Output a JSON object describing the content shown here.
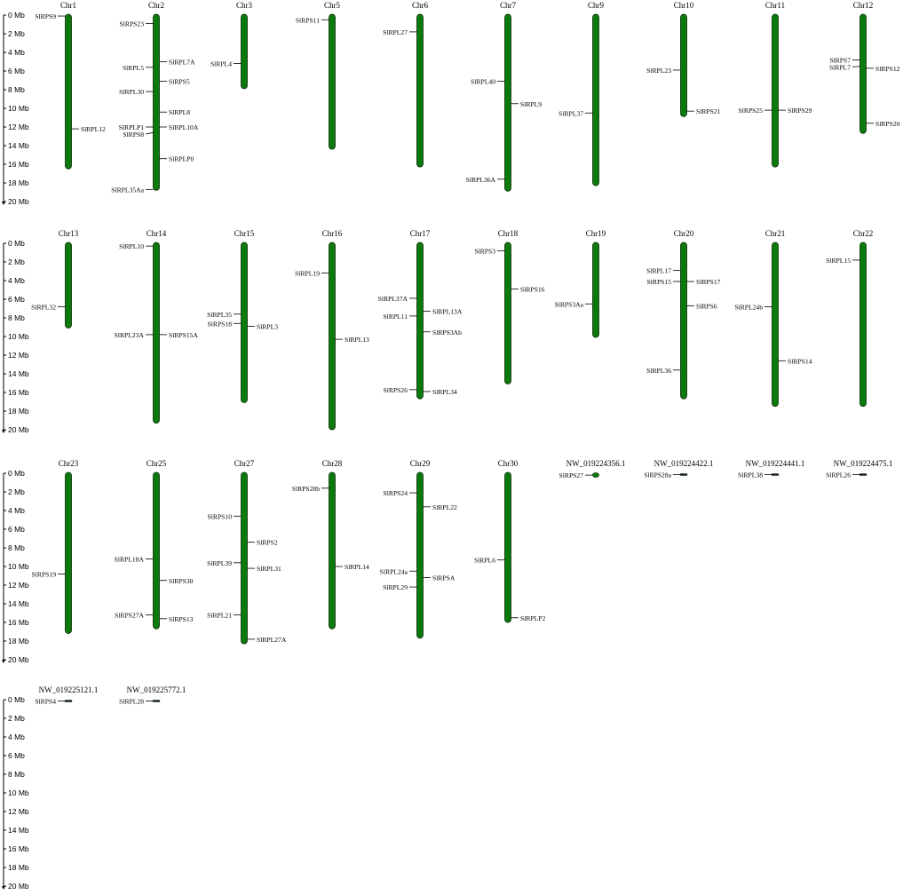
{
  "colors": {
    "chromosome_fill": "#0b7a0b",
    "chromosome_stroke": "#0a2a0a",
    "line": "#000000",
    "background": "#ffffff"
  },
  "scale_labels": [
    "0 Mb",
    "2 Mb",
    "4 Mb",
    "6 Mb",
    "8 Mb",
    "10 Mb",
    "12 Mb",
    "14 Mb",
    "16 Mb",
    "18 Mb",
    "20 Mb"
  ],
  "chromosomes": [
    {
      "name": "Chr1",
      "length": 16.4,
      "genes": [
        {
          "label": "SlRPS9",
          "pos": 0.1,
          "side": "left"
        },
        {
          "label": "SlRPL12",
          "pos": 12.2,
          "side": "right"
        }
      ]
    },
    {
      "name": "Chr2",
      "length": 18.7,
      "genes": [
        {
          "label": "SlRPS23",
          "pos": 0.9,
          "side": "left"
        },
        {
          "label": "SlRPL7A",
          "pos": 5.0,
          "side": "right"
        },
        {
          "label": "SlRPL5",
          "pos": 5.6,
          "side": "left"
        },
        {
          "label": "SlRPS5",
          "pos": 7.1,
          "side": "right"
        },
        {
          "label": "SlRPL30",
          "pos": 8.2,
          "side": "left"
        },
        {
          "label": "SlRPL8",
          "pos": 10.4,
          "side": "right"
        },
        {
          "label": "SlRPLP1",
          "pos": 12.0,
          "side": "left"
        },
        {
          "label": "SlRPL10A",
          "pos": 12.0,
          "side": "right"
        },
        {
          "label": "SlRPS8",
          "pos": 12.6,
          "side": "left"
        },
        {
          "label": "SlRPLP0",
          "pos": 15.4,
          "side": "right"
        },
        {
          "label": "SlRPL35Aa",
          "pos": 18.7,
          "side": "left"
        }
      ]
    },
    {
      "name": "Chr3",
      "length": 7.8,
      "genes": [
        {
          "label": "SlRPL4",
          "pos": 5.2,
          "side": "left"
        }
      ]
    },
    {
      "name": "Chr5",
      "length": 14.3,
      "genes": [
        {
          "label": "SlRPS11",
          "pos": 0.5,
          "side": "left"
        }
      ]
    },
    {
      "name": "Chr6",
      "length": 16.2,
      "genes": [
        {
          "label": "SlRPL27",
          "pos": 1.8,
          "side": "left"
        }
      ]
    },
    {
      "name": "Chr7",
      "length": 18.8,
      "genes": [
        {
          "label": "SlRPL40",
          "pos": 7.1,
          "side": "left"
        },
        {
          "label": "SlRPL9",
          "pos": 9.5,
          "side": "right"
        },
        {
          "label": "SlRPL36A",
          "pos": 17.6,
          "side": "left"
        }
      ]
    },
    {
      "name": "Chr9",
      "length": 18.2,
      "genes": [
        {
          "label": "SlRPL37",
          "pos": 10.5,
          "side": "left"
        }
      ]
    },
    {
      "name": "Chr10",
      "length": 10.8,
      "genes": [
        {
          "label": "SlRPL23",
          "pos": 5.9,
          "side": "left"
        },
        {
          "label": "SlRPS21",
          "pos": 10.3,
          "side": "right"
        }
      ]
    },
    {
      "name": "Chr11",
      "length": 16.2,
      "genes": [
        {
          "label": "SlRPS25",
          "pos": 10.2,
          "side": "left"
        },
        {
          "label": "SlRPS29",
          "pos": 10.2,
          "side": "right"
        }
      ]
    },
    {
      "name": "Chr12",
      "length": 12.6,
      "genes": [
        {
          "label": "SlRPS7",
          "pos": 4.8,
          "side": "left"
        },
        {
          "label": "SlRPL7",
          "pos": 5.5,
          "side": "left"
        },
        {
          "label": "SlRPS12",
          "pos": 5.7,
          "side": "right"
        },
        {
          "label": "SlRPS20",
          "pos": 11.6,
          "side": "right"
        }
      ]
    },
    {
      "name": "Chr13",
      "length": 9.0,
      "genes": [
        {
          "label": "SlRPL32",
          "pos": 6.8,
          "side": "left"
        }
      ]
    },
    {
      "name": "Chr14",
      "length": 19.2,
      "genes": [
        {
          "label": "SlRPL10",
          "pos": 0.3,
          "side": "left"
        },
        {
          "label": "SlRPL23A",
          "pos": 9.8,
          "side": "left"
        },
        {
          "label": "SlRPS15A",
          "pos": 9.8,
          "side": "right"
        }
      ]
    },
    {
      "name": "Chr15",
      "length": 17.0,
      "genes": [
        {
          "label": "SlRPL35",
          "pos": 7.6,
          "side": "left"
        },
        {
          "label": "SlRPS18",
          "pos": 8.6,
          "side": "left"
        },
        {
          "label": "SlRPL3",
          "pos": 8.9,
          "side": "right"
        }
      ]
    },
    {
      "name": "Chr16",
      "length": 19.9,
      "genes": [
        {
          "label": "SlRPL19",
          "pos": 3.2,
          "side": "left"
        },
        {
          "label": "SlRPL13",
          "pos": 10.3,
          "side": "right"
        }
      ]
    },
    {
      "name": "Chr17",
      "length": 16.6,
      "genes": [
        {
          "label": "SlRPL37A",
          "pos": 5.9,
          "side": "left"
        },
        {
          "label": "SlRPL13A",
          "pos": 7.3,
          "side": "right"
        },
        {
          "label": "SlRPL11",
          "pos": 7.8,
          "side": "left"
        },
        {
          "label": "SlRPS3Ab",
          "pos": 9.5,
          "side": "right"
        },
        {
          "label": "SlRPS26",
          "pos": 15.7,
          "side": "left"
        },
        {
          "label": "SlRPL34",
          "pos": 15.9,
          "side": "right"
        }
      ]
    },
    {
      "name": "Chr18",
      "length": 15.0,
      "genes": [
        {
          "label": "SlRPS3",
          "pos": 0.8,
          "side": "left"
        },
        {
          "label": "SlRPS16",
          "pos": 4.9,
          "side": "right"
        }
      ]
    },
    {
      "name": "Chr19",
      "length": 10.0,
      "genes": [
        {
          "label": "SlRPS3Aa",
          "pos": 6.5,
          "side": "left"
        }
      ]
    },
    {
      "name": "Chr20",
      "length": 16.6,
      "genes": [
        {
          "label": "SlRPL17",
          "pos": 2.9,
          "side": "left"
        },
        {
          "label": "SlRPS15",
          "pos": 4.1,
          "side": "left"
        },
        {
          "label": "SlRPS17",
          "pos": 4.1,
          "side": "right"
        },
        {
          "label": "SlRPS6",
          "pos": 6.7,
          "side": "right"
        },
        {
          "label": "SlRPL36",
          "pos": 13.6,
          "side": "left"
        }
      ]
    },
    {
      "name": "Chr21",
      "length": 17.4,
      "genes": [
        {
          "label": "SlRPL24b",
          "pos": 6.8,
          "side": "left"
        },
        {
          "label": "SlRPS14",
          "pos": 12.6,
          "side": "right"
        }
      ]
    },
    {
      "name": "Chr22",
      "length": 17.4,
      "genes": [
        {
          "label": "SlRPL15",
          "pos": 1.8,
          "side": "left"
        }
      ]
    },
    {
      "name": "Chr23",
      "length": 17.1,
      "genes": [
        {
          "label": "SlRPS19",
          "pos": 10.8,
          "side": "left"
        }
      ]
    },
    {
      "name": "Chr25",
      "length": 16.6,
      "genes": [
        {
          "label": "SlRPL18A",
          "pos": 9.2,
          "side": "left"
        },
        {
          "label": "SlRPS30",
          "pos": 11.5,
          "side": "right"
        },
        {
          "label": "SlRPS27A",
          "pos": 15.2,
          "side": "left"
        },
        {
          "label": "SlRPS13",
          "pos": 15.6,
          "side": "right"
        }
      ]
    },
    {
      "name": "Chr27",
      "length": 18.2,
      "genes": [
        {
          "label": "SlRPS10",
          "pos": 4.6,
          "side": "left"
        },
        {
          "label": "SlRPS2",
          "pos": 7.4,
          "side": "right"
        },
        {
          "label": "SlRPL39",
          "pos": 9.6,
          "side": "left"
        },
        {
          "label": "SlRPL31",
          "pos": 10.2,
          "side": "right"
        },
        {
          "label": "SlRPL21",
          "pos": 15.2,
          "side": "left"
        },
        {
          "label": "SlRPL27A",
          "pos": 17.8,
          "side": "right"
        }
      ]
    },
    {
      "name": "Chr28",
      "length": 16.6,
      "genes": [
        {
          "label": "SlRPS28b",
          "pos": 1.6,
          "side": "left"
        },
        {
          "label": "SlRPL14",
          "pos": 10.0,
          "side": "right"
        }
      ]
    },
    {
      "name": "Chr29",
      "length": 17.6,
      "genes": [
        {
          "label": "SlRPS24",
          "pos": 2.1,
          "side": "left"
        },
        {
          "label": "SlRPL22",
          "pos": 3.6,
          "side": "right"
        },
        {
          "label": "SlRPL24a",
          "pos": 10.5,
          "side": "left"
        },
        {
          "label": "SlRPSA",
          "pos": 11.2,
          "side": "right"
        },
        {
          "label": "SlRPL29",
          "pos": 12.2,
          "side": "left"
        }
      ]
    },
    {
      "name": "Chr30",
      "length": 15.9,
      "genes": [
        {
          "label": "SlRPL6",
          "pos": 9.3,
          "side": "left"
        },
        {
          "label": "SlRPLP2",
          "pos": 15.5,
          "side": "right"
        }
      ]
    },
    {
      "name": "NW_019224356.1",
      "length": 0.5,
      "genes": [
        {
          "label": "SlRPS27",
          "pos": 0.2,
          "side": "left"
        }
      ]
    },
    {
      "name": "NW_019224422.1",
      "length": 0.25,
      "genes": [
        {
          "label": "SlRPS28a",
          "pos": 0.15,
          "side": "left"
        }
      ]
    },
    {
      "name": "NW_019224441.1",
      "length": 0.25,
      "genes": [
        {
          "label": "SlRPL38",
          "pos": 0.15,
          "side": "left"
        }
      ]
    },
    {
      "name": "NW_019224475.1",
      "length": 0.25,
      "genes": [
        {
          "label": "SlRPL26",
          "pos": 0.15,
          "side": "left"
        }
      ]
    },
    {
      "name": "NW_019225121.1",
      "length": 0.25,
      "genes": [
        {
          "label": "SlRPS4",
          "pos": 0.15,
          "side": "left"
        }
      ]
    },
    {
      "name": "NW_019225772.1",
      "length": 0.25,
      "genes": [
        {
          "label": "SlRPL28",
          "pos": 0.15,
          "side": "left"
        }
      ]
    }
  ]
}
